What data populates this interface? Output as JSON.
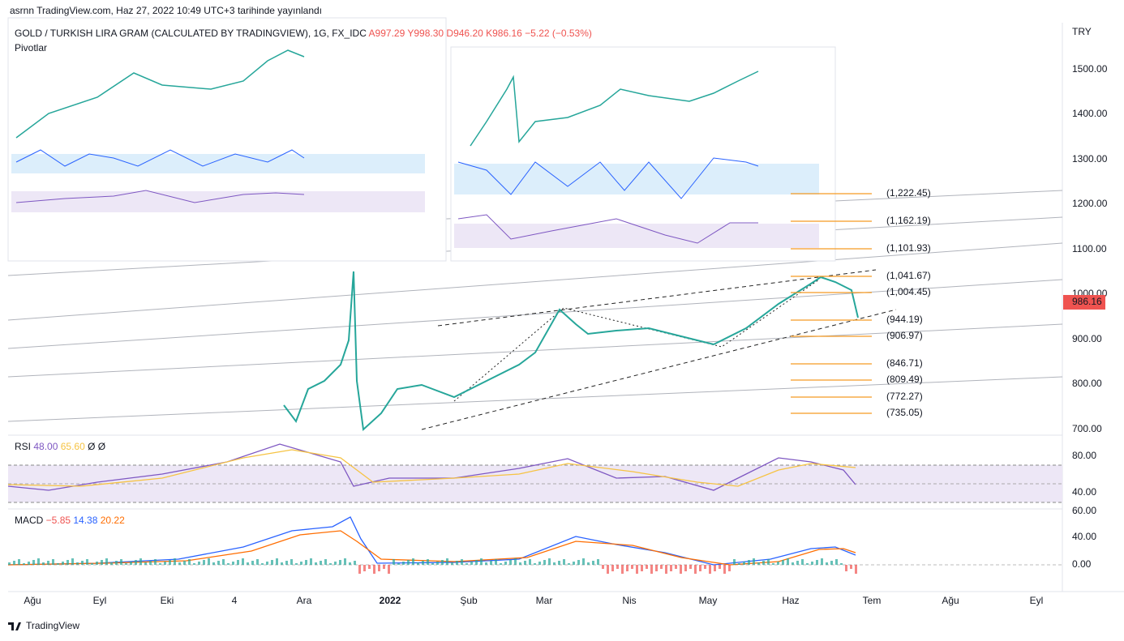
{
  "header": {
    "text": "asrnn TradingView.com, Haz 27, 2022 10:49 UTC+3 tarihinde yayınlandı"
  },
  "legend": {
    "symbol": "GOLD / TURKISH LIRA GRAM (CALCULATED BY TRADINGVIEW), 1G, FX_IDC",
    "open": "A997.29",
    "high": "Y998.30",
    "low": "D946.20",
    "close": "K986.16",
    "change": "−5.22 (−0.53%)",
    "indicator": "Pivotlar"
  },
  "price_axis": {
    "currency": "TRY",
    "ticks": [
      "1500.00",
      "1400.00",
      "1300.00",
      "1200.00",
      "1100.00",
      "1000.00",
      "900.00",
      "800.00",
      "700.00"
    ],
    "last": "986.16"
  },
  "pivots": [
    "(1,222.45)",
    "(1,162.19)",
    "(1,101.93)",
    "(1,041.67)",
    "(1,004.45)",
    "(944.19)",
    "(906.97)",
    "(846.71)",
    "(809.49)",
    "(772.27)",
    "(735.05)"
  ],
  "rsi": {
    "name": "RSI",
    "values": [
      "48.00",
      "65.60",
      "Ø",
      "Ø"
    ],
    "ticks": [
      "80.00",
      "40.00"
    ]
  },
  "macd": {
    "name": "MACD",
    "values": [
      "−5.85",
      "14.38",
      "20.22"
    ],
    "ticks": [
      "60.00",
      "40.00",
      "0.00"
    ]
  },
  "time_axis": [
    "Ağu",
    "Eyl",
    "Eki",
    "4",
    "Ara",
    "2022",
    "Şub",
    "Mar",
    "Nis",
    "May",
    "Haz",
    "Tem",
    "Ağu",
    "Eyl"
  ],
  "footer": "TradingView"
}
